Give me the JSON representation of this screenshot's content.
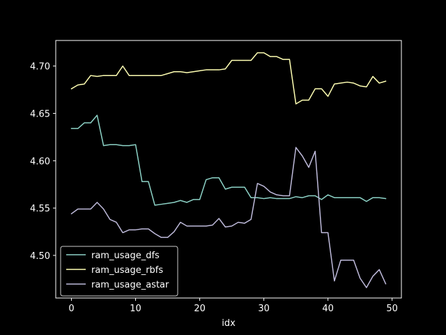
{
  "chart_data": {
    "type": "line",
    "xlabel": "idx",
    "ylabel": "",
    "xlim": [
      -2.45,
      51.45
    ],
    "ylim": [
      4.455,
      4.727
    ],
    "xticks": [
      0,
      10,
      20,
      30,
      40,
      50
    ],
    "yticks": [
      4.5,
      4.55,
      4.6,
      4.65,
      4.7
    ],
    "xtick_labels": [
      "0",
      "10",
      "20",
      "30",
      "40",
      "50"
    ],
    "ytick_labels": [
      "4.50",
      "4.55",
      "4.60",
      "4.65",
      "4.70"
    ],
    "legend_position": "lower-left",
    "grid": false,
    "x": [
      0,
      1,
      2,
      3,
      4,
      5,
      6,
      7,
      8,
      9,
      10,
      11,
      12,
      13,
      14,
      15,
      16,
      17,
      18,
      19,
      20,
      21,
      22,
      23,
      24,
      25,
      26,
      27,
      28,
      29,
      30,
      31,
      32,
      33,
      34,
      35,
      36,
      37,
      38,
      39,
      40,
      41,
      42,
      43,
      44,
      45,
      46,
      47,
      48,
      49
    ],
    "series": [
      {
        "name": "ram_usage_dfs",
        "color": "#8dd3c7",
        "values": [
          4.634,
          4.634,
          4.64,
          4.64,
          4.648,
          4.616,
          4.617,
          4.617,
          4.616,
          4.616,
          4.617,
          4.578,
          4.578,
          4.553,
          4.554,
          4.555,
          4.556,
          4.558,
          4.556,
          4.559,
          4.559,
          4.58,
          4.582,
          4.582,
          4.57,
          4.572,
          4.572,
          4.572,
          4.561,
          4.561,
          4.56,
          4.561,
          4.56,
          4.56,
          4.56,
          4.562,
          4.561,
          4.563,
          4.563,
          4.559,
          4.564,
          4.561,
          4.561,
          4.561,
          4.561,
          4.561,
          4.557,
          4.561,
          4.561,
          4.56
        ]
      },
      {
        "name": "ram_usage_rbfs",
        "color": "#ffffb3",
        "values": [
          4.676,
          4.68,
          4.681,
          4.69,
          4.689,
          4.69,
          4.69,
          4.69,
          4.7,
          4.69,
          4.69,
          4.69,
          4.69,
          4.69,
          4.69,
          4.692,
          4.694,
          4.694,
          4.693,
          4.694,
          4.695,
          4.696,
          4.696,
          4.696,
          4.697,
          4.706,
          4.706,
          4.706,
          4.706,
          4.714,
          4.714,
          4.71,
          4.71,
          4.707,
          4.707,
          4.66,
          4.664,
          4.664,
          4.676,
          4.676,
          4.668,
          4.681,
          4.682,
          4.683,
          4.682,
          4.679,
          4.678,
          4.689,
          4.682,
          4.684
        ]
      },
      {
        "name": "ram_usage_astar",
        "color": "#bebada",
        "values": [
          4.544,
          4.549,
          4.549,
          4.549,
          4.556,
          4.549,
          4.538,
          4.535,
          4.524,
          4.527,
          4.527,
          4.528,
          4.528,
          4.523,
          4.519,
          4.519,
          4.525,
          4.535,
          4.531,
          4.531,
          4.531,
          4.531,
          4.532,
          4.539,
          4.53,
          4.531,
          4.535,
          4.534,
          4.538,
          4.576,
          4.573,
          4.567,
          4.564,
          4.563,
          4.563,
          4.614,
          4.605,
          4.593,
          4.61,
          4.524,
          4.524,
          4.473,
          4.495,
          4.495,
          4.495,
          4.476,
          4.466,
          4.478,
          4.485,
          4.47
        ]
      }
    ]
  }
}
